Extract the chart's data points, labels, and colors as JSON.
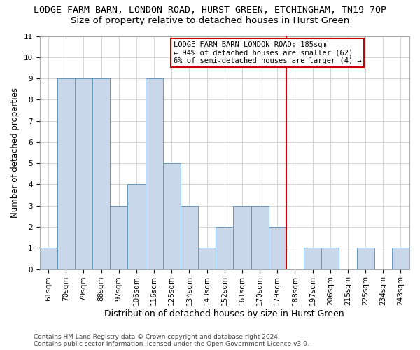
{
  "title": "LODGE FARM BARN, LONDON ROAD, HURST GREEN, ETCHINGHAM, TN19 7QP",
  "subtitle": "Size of property relative to detached houses in Hurst Green",
  "xlabel": "Distribution of detached houses by size in Hurst Green",
  "ylabel": "Number of detached properties",
  "footnote1": "Contains HM Land Registry data © Crown copyright and database right 2024.",
  "footnote2": "Contains public sector information licensed under the Open Government Licence v3.0.",
  "bin_labels": [
    "61sqm",
    "70sqm",
    "79sqm",
    "88sqm",
    "97sqm",
    "106sqm",
    "116sqm",
    "125sqm",
    "134sqm",
    "143sqm",
    "152sqm",
    "161sqm",
    "170sqm",
    "179sqm",
    "188sqm",
    "197sqm",
    "206sqm",
    "215sqm",
    "225sqm",
    "234sqm",
    "243sqm"
  ],
  "bar_heights": [
    1,
    9,
    9,
    9,
    3,
    4,
    9,
    5,
    3,
    1,
    2,
    3,
    3,
    2,
    0,
    1,
    1,
    0,
    1,
    0,
    1
  ],
  "bar_color": "#c8d8ea",
  "bar_edge_color": "#6699bb",
  "grid_color": "#cccccc",
  "annotation_line_color": "#cc0000",
  "annotation_box_edge_color": "#cc0000",
  "annotation_box_text_line1": "LODGE FARM BARN LONDON ROAD: 185sqm",
  "annotation_box_text_line2": "← 94% of detached houses are smaller (62)",
  "annotation_box_text_line3": "6% of semi-detached houses are larger (4) →",
  "red_line_index": 14.5,
  "ylim": [
    0,
    11
  ],
  "yticks": [
    0,
    1,
    2,
    3,
    4,
    5,
    6,
    7,
    8,
    9,
    10,
    11
  ],
  "background_color": "#ffffff",
  "title_fontsize": 9.5,
  "subtitle_fontsize": 9.5,
  "ylabel_fontsize": 8.5,
  "xlabel_fontsize": 9,
  "footnote_fontsize": 6.5,
  "tick_fontsize": 7.5,
  "annot_fontsize": 7.5
}
